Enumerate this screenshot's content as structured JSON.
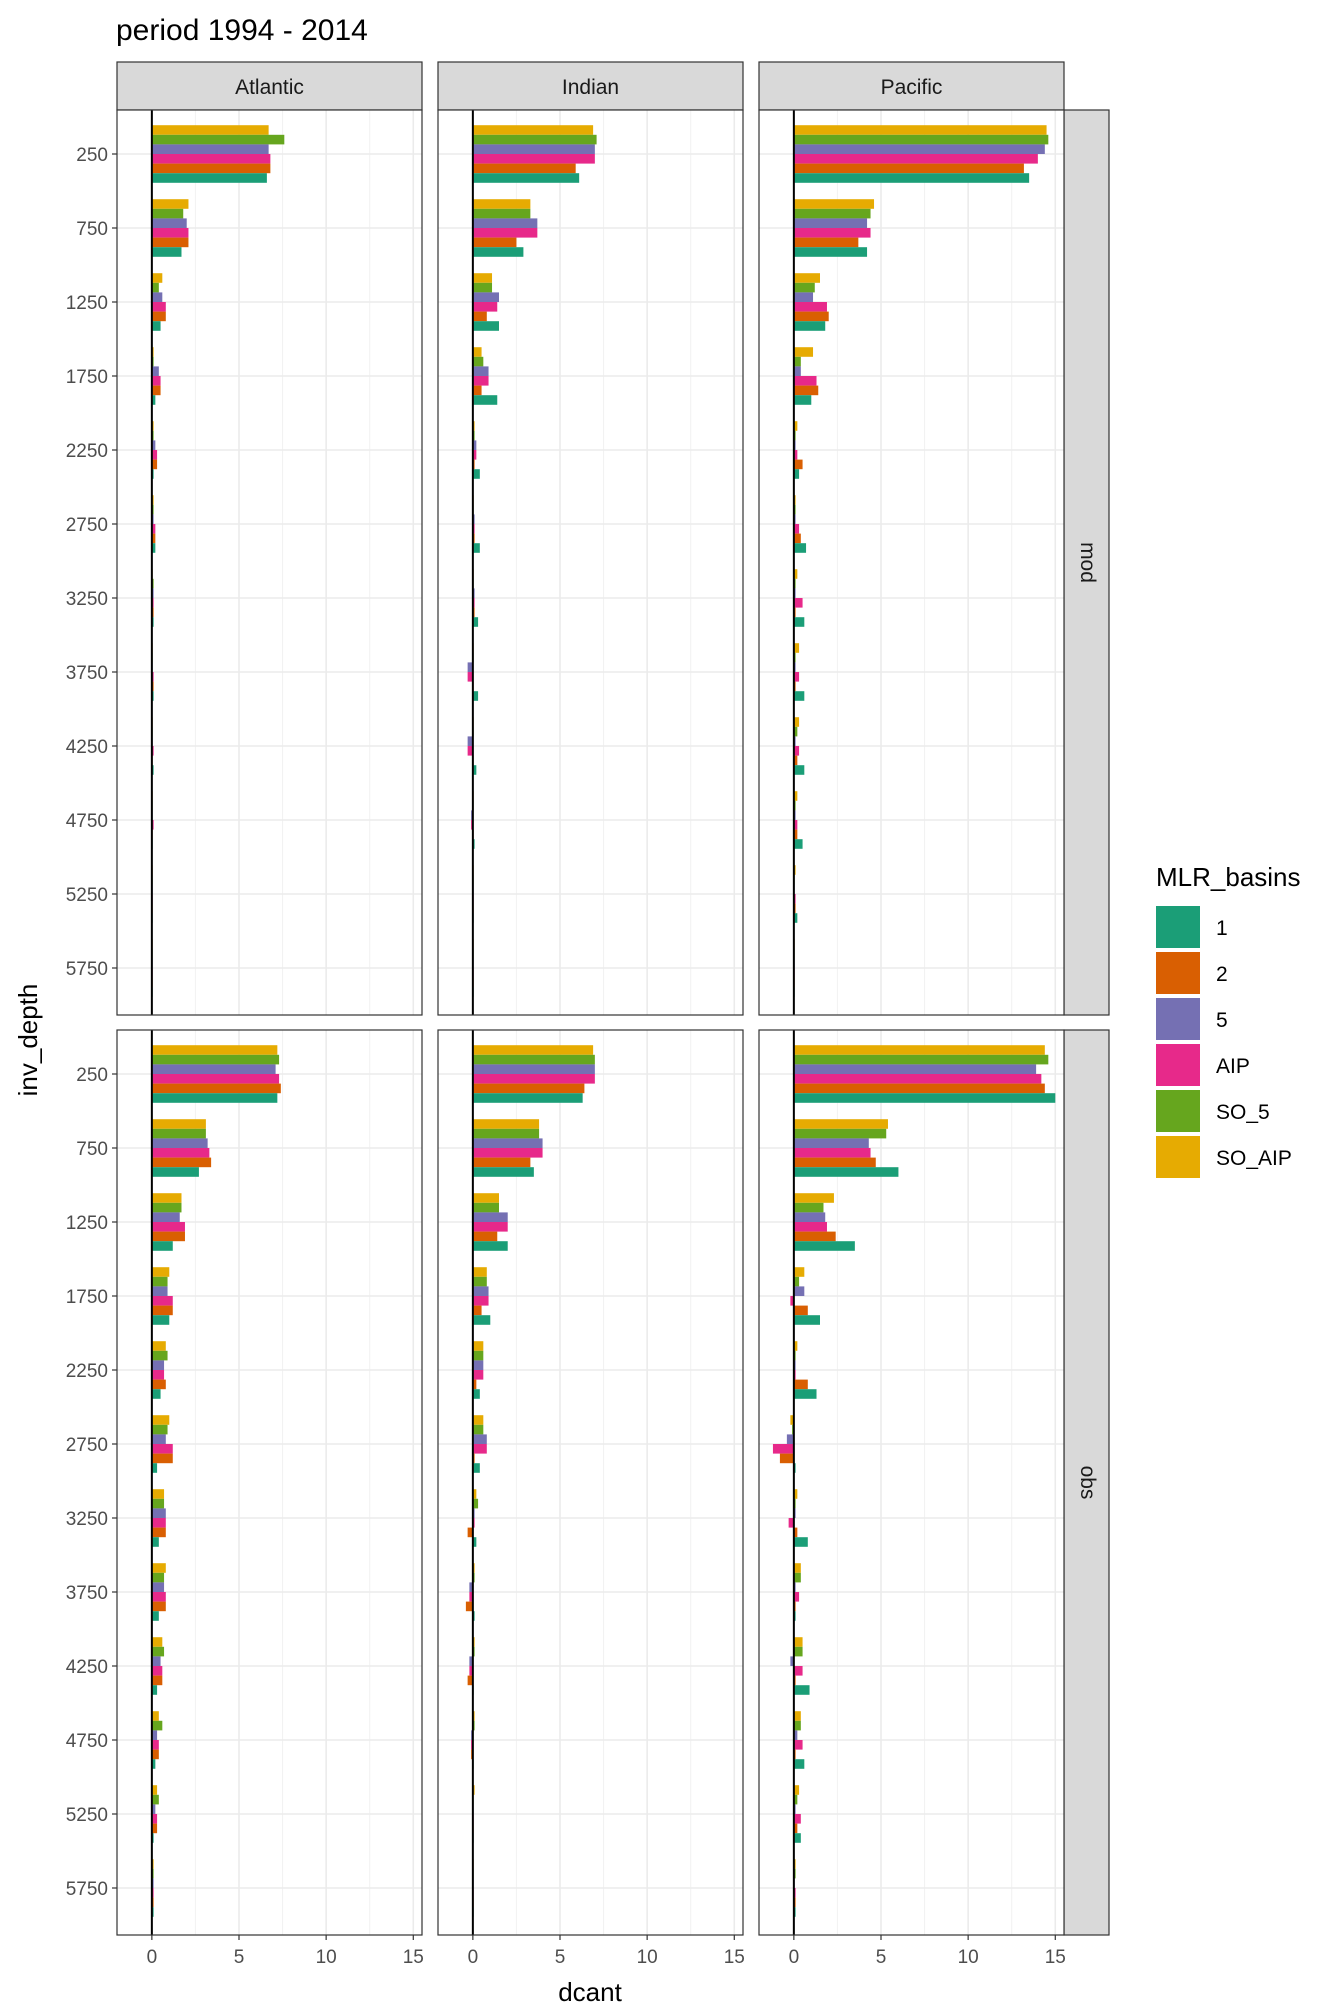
{
  "chart_data": {
    "type": "bar",
    "orientation": "horizontal",
    "title": "period 1994 - 2014",
    "xlabel": "dcant",
    "ylabel": "inv_depth",
    "xlim": [
      -2.0,
      15.5
    ],
    "x_ticks": [
      0,
      5,
      10,
      15
    ],
    "depth_levels": [
      250,
      750,
      1250,
      1750,
      2250,
      2750,
      3250,
      3750,
      4250,
      4750,
      5250,
      5750
    ],
    "y_tick_labels": [
      "250",
      "750",
      "1250",
      "1750",
      "2250",
      "2750",
      "3250",
      "3750",
      "4250",
      "4750",
      "5250",
      "5750"
    ],
    "facet_columns": [
      "Atlantic",
      "Indian",
      "Pacific"
    ],
    "facet_rows": [
      "mod",
      "obs"
    ],
    "grid": true,
    "legend": {
      "title": "MLR_basins",
      "position": "right",
      "entries": [
        {
          "name": "1",
          "color": "#1B9E77"
        },
        {
          "name": "2",
          "color": "#D95F02"
        },
        {
          "name": "5",
          "color": "#7570B3"
        },
        {
          "name": "AIP",
          "color": "#E7298A"
        },
        {
          "name": "SO_5",
          "color": "#66A61E"
        },
        {
          "name": "SO_AIP",
          "color": "#E6AB02"
        }
      ]
    },
    "bar_order_top_to_bottom": [
      "SO_AIP",
      "SO_5",
      "5",
      "AIP",
      "2",
      "1"
    ],
    "panels": [
      {
        "basin": "Atlantic",
        "data_source": "mod",
        "series": {
          "1": [
            6.6,
            1.7,
            0.5,
            0.2,
            0.1,
            0.2,
            0.1,
            0.1,
            0.1,
            0.0,
            0.0,
            0.0
          ],
          "2": [
            6.8,
            2.1,
            0.8,
            0.5,
            0.3,
            0.2,
            0.1,
            0.1,
            0.0,
            0.0,
            0.0,
            0.0
          ],
          "5": [
            6.7,
            2.0,
            0.6,
            0.4,
            0.2,
            0.1,
            0.1,
            0.0,
            0.0,
            0.0,
            0.0,
            0.0
          ],
          "AIP": [
            6.8,
            2.1,
            0.8,
            0.5,
            0.3,
            0.2,
            0.1,
            0.1,
            0.1,
            0.1,
            0.0,
            0.0
          ],
          "SO_5": [
            7.6,
            1.8,
            0.4,
            0.1,
            0.1,
            0.1,
            0.1,
            0.0,
            0.0,
            0.0,
            0.0,
            0.0
          ],
          "SO_AIP": [
            6.7,
            2.1,
            0.6,
            0.1,
            0.1,
            0.1,
            0.0,
            0.0,
            0.0,
            0.0,
            0.0,
            0.0
          ]
        }
      },
      {
        "basin": "Indian",
        "data_source": "mod",
        "series": {
          "1": [
            6.1,
            2.9,
            1.5,
            1.4,
            0.4,
            0.4,
            0.3,
            0.3,
            0.2,
            0.1,
            0.0,
            0.0
          ],
          "2": [
            5.9,
            2.5,
            0.8,
            0.5,
            0.1,
            0.1,
            0.1,
            0.0,
            0.0,
            0.0,
            0.0,
            0.0
          ],
          "5": [
            7.0,
            3.7,
            1.5,
            0.9,
            0.2,
            0.1,
            0.1,
            -0.3,
            -0.3,
            -0.1,
            0.0,
            0.0
          ],
          "AIP": [
            7.0,
            3.7,
            1.4,
            0.9,
            0.2,
            0.1,
            0.1,
            -0.3,
            -0.3,
            -0.1,
            0.0,
            0.0
          ],
          "SO_5": [
            7.1,
            3.3,
            1.1,
            0.6,
            0.1,
            0.0,
            0.0,
            0.0,
            0.0,
            0.0,
            0.0,
            0.0
          ],
          "SO_AIP": [
            6.9,
            3.3,
            1.1,
            0.5,
            0.1,
            0.0,
            0.0,
            0.0,
            0.0,
            0.0,
            0.0,
            0.0
          ]
        }
      },
      {
        "basin": "Pacific",
        "data_source": "mod",
        "series": {
          "1": [
            13.5,
            4.2,
            1.8,
            1.0,
            0.3,
            0.7,
            0.6,
            0.6,
            0.6,
            0.5,
            0.2,
            0.0
          ],
          "2": [
            13.2,
            3.7,
            2.0,
            1.4,
            0.5,
            0.4,
            0.1,
            0.1,
            0.2,
            0.2,
            0.1,
            0.0
          ],
          "5": [
            14.4,
            4.2,
            1.1,
            0.4,
            0.1,
            0.1,
            0.1,
            0.1,
            0.1,
            0.1,
            0.0,
            0.0
          ],
          "AIP": [
            14.0,
            4.4,
            1.9,
            1.3,
            0.2,
            0.3,
            0.5,
            0.3,
            0.3,
            0.2,
            0.1,
            0.0
          ],
          "SO_5": [
            14.6,
            4.4,
            1.2,
            0.4,
            0.1,
            0.1,
            0.1,
            0.1,
            0.2,
            0.1,
            0.0,
            0.0
          ],
          "SO_AIP": [
            14.5,
            4.6,
            1.5,
            1.1,
            0.2,
            0.1,
            0.2,
            0.3,
            0.3,
            0.2,
            0.1,
            0.0
          ]
        }
      },
      {
        "basin": "Atlantic",
        "data_source": "obs",
        "series": {
          "1": [
            7.2,
            2.7,
            1.2,
            1.0,
            0.5,
            0.3,
            0.4,
            0.4,
            0.3,
            0.2,
            0.1,
            0.1
          ],
          "2": [
            7.4,
            3.4,
            1.9,
            1.2,
            0.8,
            1.2,
            0.8,
            0.8,
            0.6,
            0.4,
            0.3,
            0.1
          ],
          "5": [
            7.1,
            3.2,
            1.6,
            0.9,
            0.7,
            0.8,
            0.8,
            0.7,
            0.5,
            0.3,
            0.2,
            0.1
          ],
          "AIP": [
            7.3,
            3.3,
            1.9,
            1.2,
            0.7,
            1.2,
            0.8,
            0.8,
            0.6,
            0.4,
            0.3,
            0.1
          ],
          "SO_5": [
            7.3,
            3.1,
            1.7,
            0.9,
            0.9,
            0.9,
            0.7,
            0.7,
            0.7,
            0.6,
            0.4,
            0.1
          ],
          "SO_AIP": [
            7.2,
            3.1,
            1.7,
            1.0,
            0.8,
            1.0,
            0.7,
            0.8,
            0.6,
            0.4,
            0.3,
            0.1
          ]
        }
      },
      {
        "basin": "Indian",
        "data_source": "obs",
        "series": {
          "1": [
            6.3,
            3.5,
            2.0,
            1.0,
            0.4,
            0.4,
            0.2,
            0.1,
            0.0,
            0.0,
            0.0,
            0.0
          ],
          "2": [
            6.4,
            3.3,
            1.4,
            0.5,
            0.2,
            0.1,
            -0.3,
            -0.4,
            -0.3,
            -0.1,
            0.0,
            0.0
          ],
          "5": [
            7.0,
            4.0,
            2.0,
            0.9,
            0.6,
            0.8,
            0.1,
            -0.2,
            -0.2,
            -0.1,
            0.0,
            0.0
          ],
          "AIP": [
            7.0,
            4.0,
            2.0,
            0.9,
            0.6,
            0.8,
            0.1,
            -0.2,
            -0.2,
            -0.1,
            0.0,
            0.0
          ],
          "SO_5": [
            7.0,
            3.8,
            1.5,
            0.8,
            0.6,
            0.6,
            0.3,
            0.1,
            0.1,
            0.1,
            0.0,
            0.0
          ],
          "SO_AIP": [
            6.9,
            3.8,
            1.5,
            0.8,
            0.6,
            0.6,
            0.2,
            0.1,
            0.1,
            0.1,
            0.1,
            0.0
          ]
        }
      },
      {
        "basin": "Pacific",
        "data_source": "obs",
        "series": {
          "1": [
            15.0,
            6.0,
            3.5,
            1.5,
            1.3,
            0.1,
            0.8,
            0.1,
            0.9,
            0.6,
            0.4,
            0.1
          ],
          "2": [
            14.4,
            4.7,
            2.4,
            0.8,
            0.8,
            -0.8,
            0.2,
            0.1,
            0.1,
            0.1,
            0.2,
            0.1
          ],
          "5": [
            13.9,
            4.3,
            1.8,
            0.6,
            0.1,
            -0.4,
            0.1,
            0.1,
            -0.2,
            0.2,
            0.1,
            0.0
          ],
          "AIP": [
            14.2,
            4.4,
            1.9,
            -0.2,
            0.1,
            -1.2,
            -0.3,
            0.3,
            0.5,
            0.5,
            0.4,
            0.1
          ],
          "SO_5": [
            14.6,
            5.3,
            1.7,
            0.3,
            0.1,
            -0.1,
            0.1,
            0.4,
            0.5,
            0.4,
            0.2,
            0.1
          ],
          "SO_AIP": [
            14.4,
            5.4,
            2.3,
            0.6,
            0.2,
            -0.2,
            0.2,
            0.4,
            0.5,
            0.4,
            0.3,
            0.1
          ]
        }
      }
    ]
  }
}
